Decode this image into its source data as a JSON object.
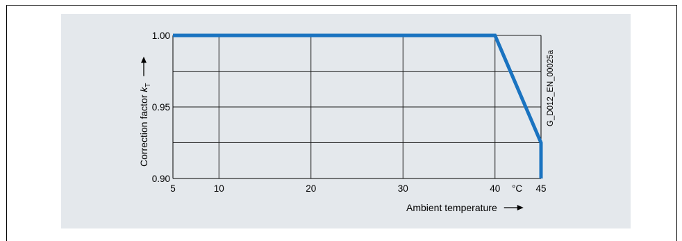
{
  "chart_data": {
    "type": "line",
    "x": [
      5,
      40,
      45,
      45
    ],
    "y": [
      1.0,
      1.0,
      0.925,
      0.9
    ],
    "xlim": [
      5,
      45
    ],
    "ylim": [
      0.9,
      1.0
    ],
    "x_ticks": [
      "5",
      "10",
      "20",
      "30",
      "40",
      "45"
    ],
    "x_tick_values": [
      5,
      10,
      20,
      30,
      40,
      45
    ],
    "x_unit": "°C",
    "y_ticks": [
      "0.90",
      "0.95",
      "1.00"
    ],
    "y_tick_values": [
      0.9,
      0.95,
      1.0
    ],
    "y_grid_values": [
      0.9,
      0.925,
      0.95,
      0.975,
      1.0
    ],
    "x_grid_values": [
      10,
      20,
      30,
      40
    ],
    "xlabel": "Ambient temperature",
    "ylabel_prefix": "Correction factor ",
    "ylabel_symbol": "k",
    "ylabel_subscript": "T",
    "figure_id": "G_D012_EN_00025a",
    "grid": true,
    "line_color": "#1a73c0",
    "panel_color": "#e4e8ec"
  }
}
